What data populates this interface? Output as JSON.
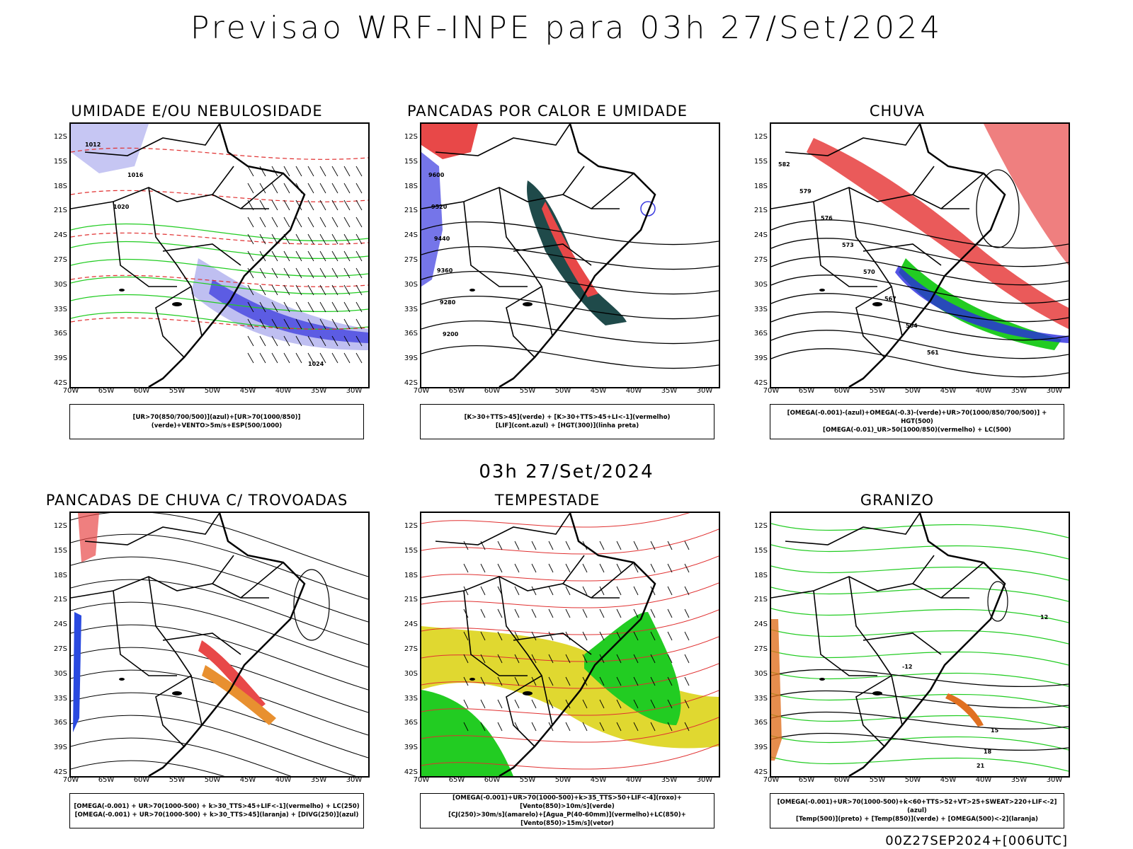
{
  "title": "Previsao WRF-INPE  para 03h 27/Set/2024",
  "mid_date": "03h 27/Set/2024",
  "footer_stamp": "00Z27SEP2024+[006UTC]",
  "axes": {
    "lat_labels": [
      "12S",
      "15S",
      "18S",
      "21S",
      "24S",
      "27S",
      "30S",
      "33S",
      "36S",
      "39S",
      "42S"
    ],
    "lon_labels": [
      "70W",
      "65W",
      "60W",
      "55W",
      "50W",
      "45W",
      "40W",
      "35W",
      "30W"
    ]
  },
  "panels": [
    {
      "title": "UMIDADE E/OU NEBULOSIDADE",
      "legend": [
        "[UR>70(850/700/500)](azul)+[UR>70(1000/850)](verde)+VENTO>5m/s+ESP(500/1000)"
      ],
      "contour_labels": [
        "1012",
        "1016",
        "1020",
        "1024"
      ],
      "colors": {
        "blue": "#4a4ae0",
        "lightblue": "#b8b8f0",
        "green": "#22cc22",
        "red": "#e03030"
      }
    },
    {
      "title": "PANCADAS POR CALOR E UMIDADE",
      "legend": [
        "[K>30+TTS>45](verde) + [K>30+TTS>45+LI<-1](vermelho)",
        "[LIF](cont.azul) + [HGT(300)](linha preta)"
      ],
      "contour_labels": [
        "9600",
        "9520",
        "9440",
        "9360",
        "9280",
        "9200"
      ],
      "colors": {
        "darkteal": "#1f4a4a",
        "red": "#e84848",
        "blue": "#3a3ae0"
      }
    },
    {
      "title": "CHUVA",
      "legend": [
        "[OMEGA(-0.001)-(azul)+OMEGA(-0.3)-(verde)+UR>70(1000/850/700/500)] + HGT(500)",
        "[OMEGA(-0.01)_UR>50(1000/850)(vermelho) + LC(500)"
      ],
      "contour_labels": [
        "582",
        "579",
        "576",
        "573",
        "570",
        "567",
        "564",
        "561"
      ],
      "colors": {
        "red": "#e84848",
        "green": "#22cc22",
        "blue": "#2a2ae0"
      }
    },
    {
      "title": "PANCADAS DE CHUVA C/ TROVOADAS",
      "legend": [
        "[OMEGA(-0.001) + UR>70(1000-500) + k>30_TTS>45+LIF<-1](vermelho) + LC(250)",
        "[OMEGA(-0.001) + UR>70(1000-500) + k>30_TTS>45](laranja) + [DIVG(250)](azul)"
      ],
      "contour_labels": [],
      "colors": {
        "red": "#e84848",
        "orange": "#e89030",
        "blue": "#2a4ae0"
      }
    },
    {
      "title": "TEMPESTADE",
      "legend": [
        "[OMEGA(-0.001)+UR>70(1000-500)+k>35_TTS>50+LIF<-4](roxo)+[Vento(850)>10m/s](verde)",
        "[CJ(250)>30m/s](amarelo)+[Agua_P(40-60mm)](vermelho)+LC(850)+[Vento(850)>15m/s](vetor)"
      ],
      "contour_labels": [],
      "colors": {
        "yellow": "#e0d830",
        "green": "#22cc22",
        "red": "#e03030"
      }
    },
    {
      "title": "GRANIZO",
      "legend": [
        "[OMEGA(-0.001)+UR>70(1000-500)+k<60+TTS>52+VT>25+SWEAT>220+LIF<-2](azul)",
        "[Temp(500)](preto) + [Temp(850)](verde) + [OMEGA(500)<-2](laranja)"
      ],
      "contour_labels": [
        "-12",
        "12",
        "15",
        "18",
        "21"
      ],
      "colors": {
        "green": "#22cc22",
        "orange": "#e07020"
      }
    }
  ]
}
